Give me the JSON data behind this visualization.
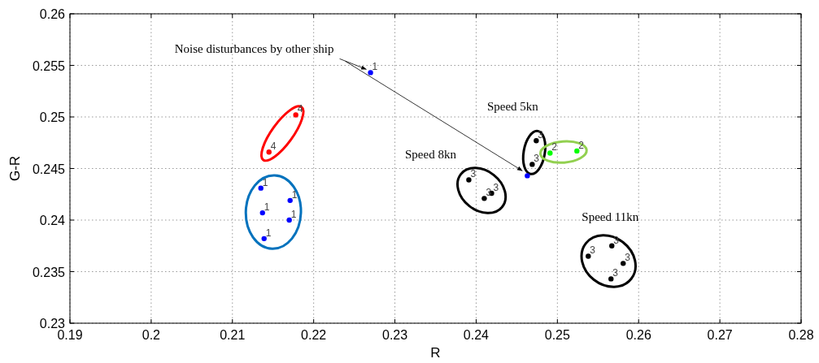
{
  "chart_data": {
    "type": "scatter",
    "xlabel": "R",
    "ylabel": "G-R",
    "xlim": [
      0.19,
      0.28
    ],
    "ylim": [
      0.23,
      0.26
    ],
    "xticks": [
      0.19,
      0.2,
      0.21,
      0.22,
      0.23,
      0.24,
      0.25,
      0.26,
      0.27,
      0.28
    ],
    "yticks": [
      0.23,
      0.235,
      0.24,
      0.245,
      0.25,
      0.255,
      0.26
    ],
    "grid": true,
    "marker": "circle",
    "series": [
      {
        "color": "#ff0000",
        "x": [
          0.2178,
          0.2145
        ],
        "values": [
          0.2502,
          0.2466
        ]
      },
      {
        "color": "#0000ff",
        "x": [
          0.2135,
          0.2171,
          0.2137,
          0.217,
          0.2139
        ],
        "values": [
          0.2431,
          0.2419,
          0.2407,
          0.24,
          0.2382
        ]
      },
      {
        "color": "#000000",
        "x": [
          0.2474,
          0.2469
        ],
        "values": [
          0.2477,
          0.2454
        ]
      },
      {
        "color": "#000000",
        "x": [
          0.2391,
          0.241,
          0.2419
        ],
        "values": [
          0.2439,
          0.2421,
          0.2426
        ]
      },
      {
        "color": "#000000",
        "x": [
          0.2538,
          0.2567,
          0.2581,
          0.2566
        ],
        "values": [
          0.2365,
          0.2375,
          0.2358,
          0.2343
        ]
      },
      {
        "color": "#00ff00",
        "x": [
          0.2491,
          0.2524
        ],
        "values": [
          0.2465,
          0.2467
        ]
      },
      {
        "color": "#0000ff",
        "x": [
          0.227
        ],
        "values": [
          0.2543
        ]
      },
      {
        "color": "#0000ff",
        "x": [
          0.2463
        ],
        "values": [
          0.2443
        ]
      }
    ],
    "annotations": [
      {
        "text": "Noise disturbances by other ship",
        "x": 0.227,
        "y": 0.2543
      },
      "Speed 5kn",
      "Speed 8kn",
      "Speed 11kn",
      {
        "text": "4",
        "x": 0.2178,
        "y": 0.2502
      },
      {
        "text": "4",
        "x": 0.2145,
        "y": 0.2466
      },
      {
        "text": "1",
        "x": 0.2135,
        "y": 0.2431
      },
      {
        "text": "1",
        "x": 0.2171,
        "y": 0.2419
      },
      {
        "text": "1",
        "x": 0.2137,
        "y": 0.2407
      },
      {
        "text": "1",
        "x": 0.217,
        "y": 0.24
      },
      {
        "text": "1",
        "x": 0.2139,
        "y": 0.2382
      },
      {
        "text": "3",
        "x": 0.2474,
        "y": 0.2477
      },
      {
        "text": "3",
        "x": 0.2469,
        "y": 0.2454
      },
      {
        "text": "3",
        "x": 0.2391,
        "y": 0.2439
      },
      {
        "text": "3",
        "x": 0.241,
        "y": 0.2421
      },
      {
        "text": "3",
        "x": 0.2419,
        "y": 0.2426
      },
      {
        "text": "3",
        "x": 0.2538,
        "y": 0.2365
      },
      {
        "text": "3",
        "x": 0.2567,
        "y": 0.2375
      },
      {
        "text": "3",
        "x": 0.2581,
        "y": 0.2358
      },
      {
        "text": "3",
        "x": 0.2566,
        "y": 0.2343
      },
      {
        "text": "2",
        "x": 0.2491,
        "y": 0.2465
      },
      {
        "text": "2",
        "x": 0.2524,
        "y": 0.2467
      },
      {
        "text": "1",
        "x": 0.227,
        "y": 0.2543
      }
    ]
  }
}
